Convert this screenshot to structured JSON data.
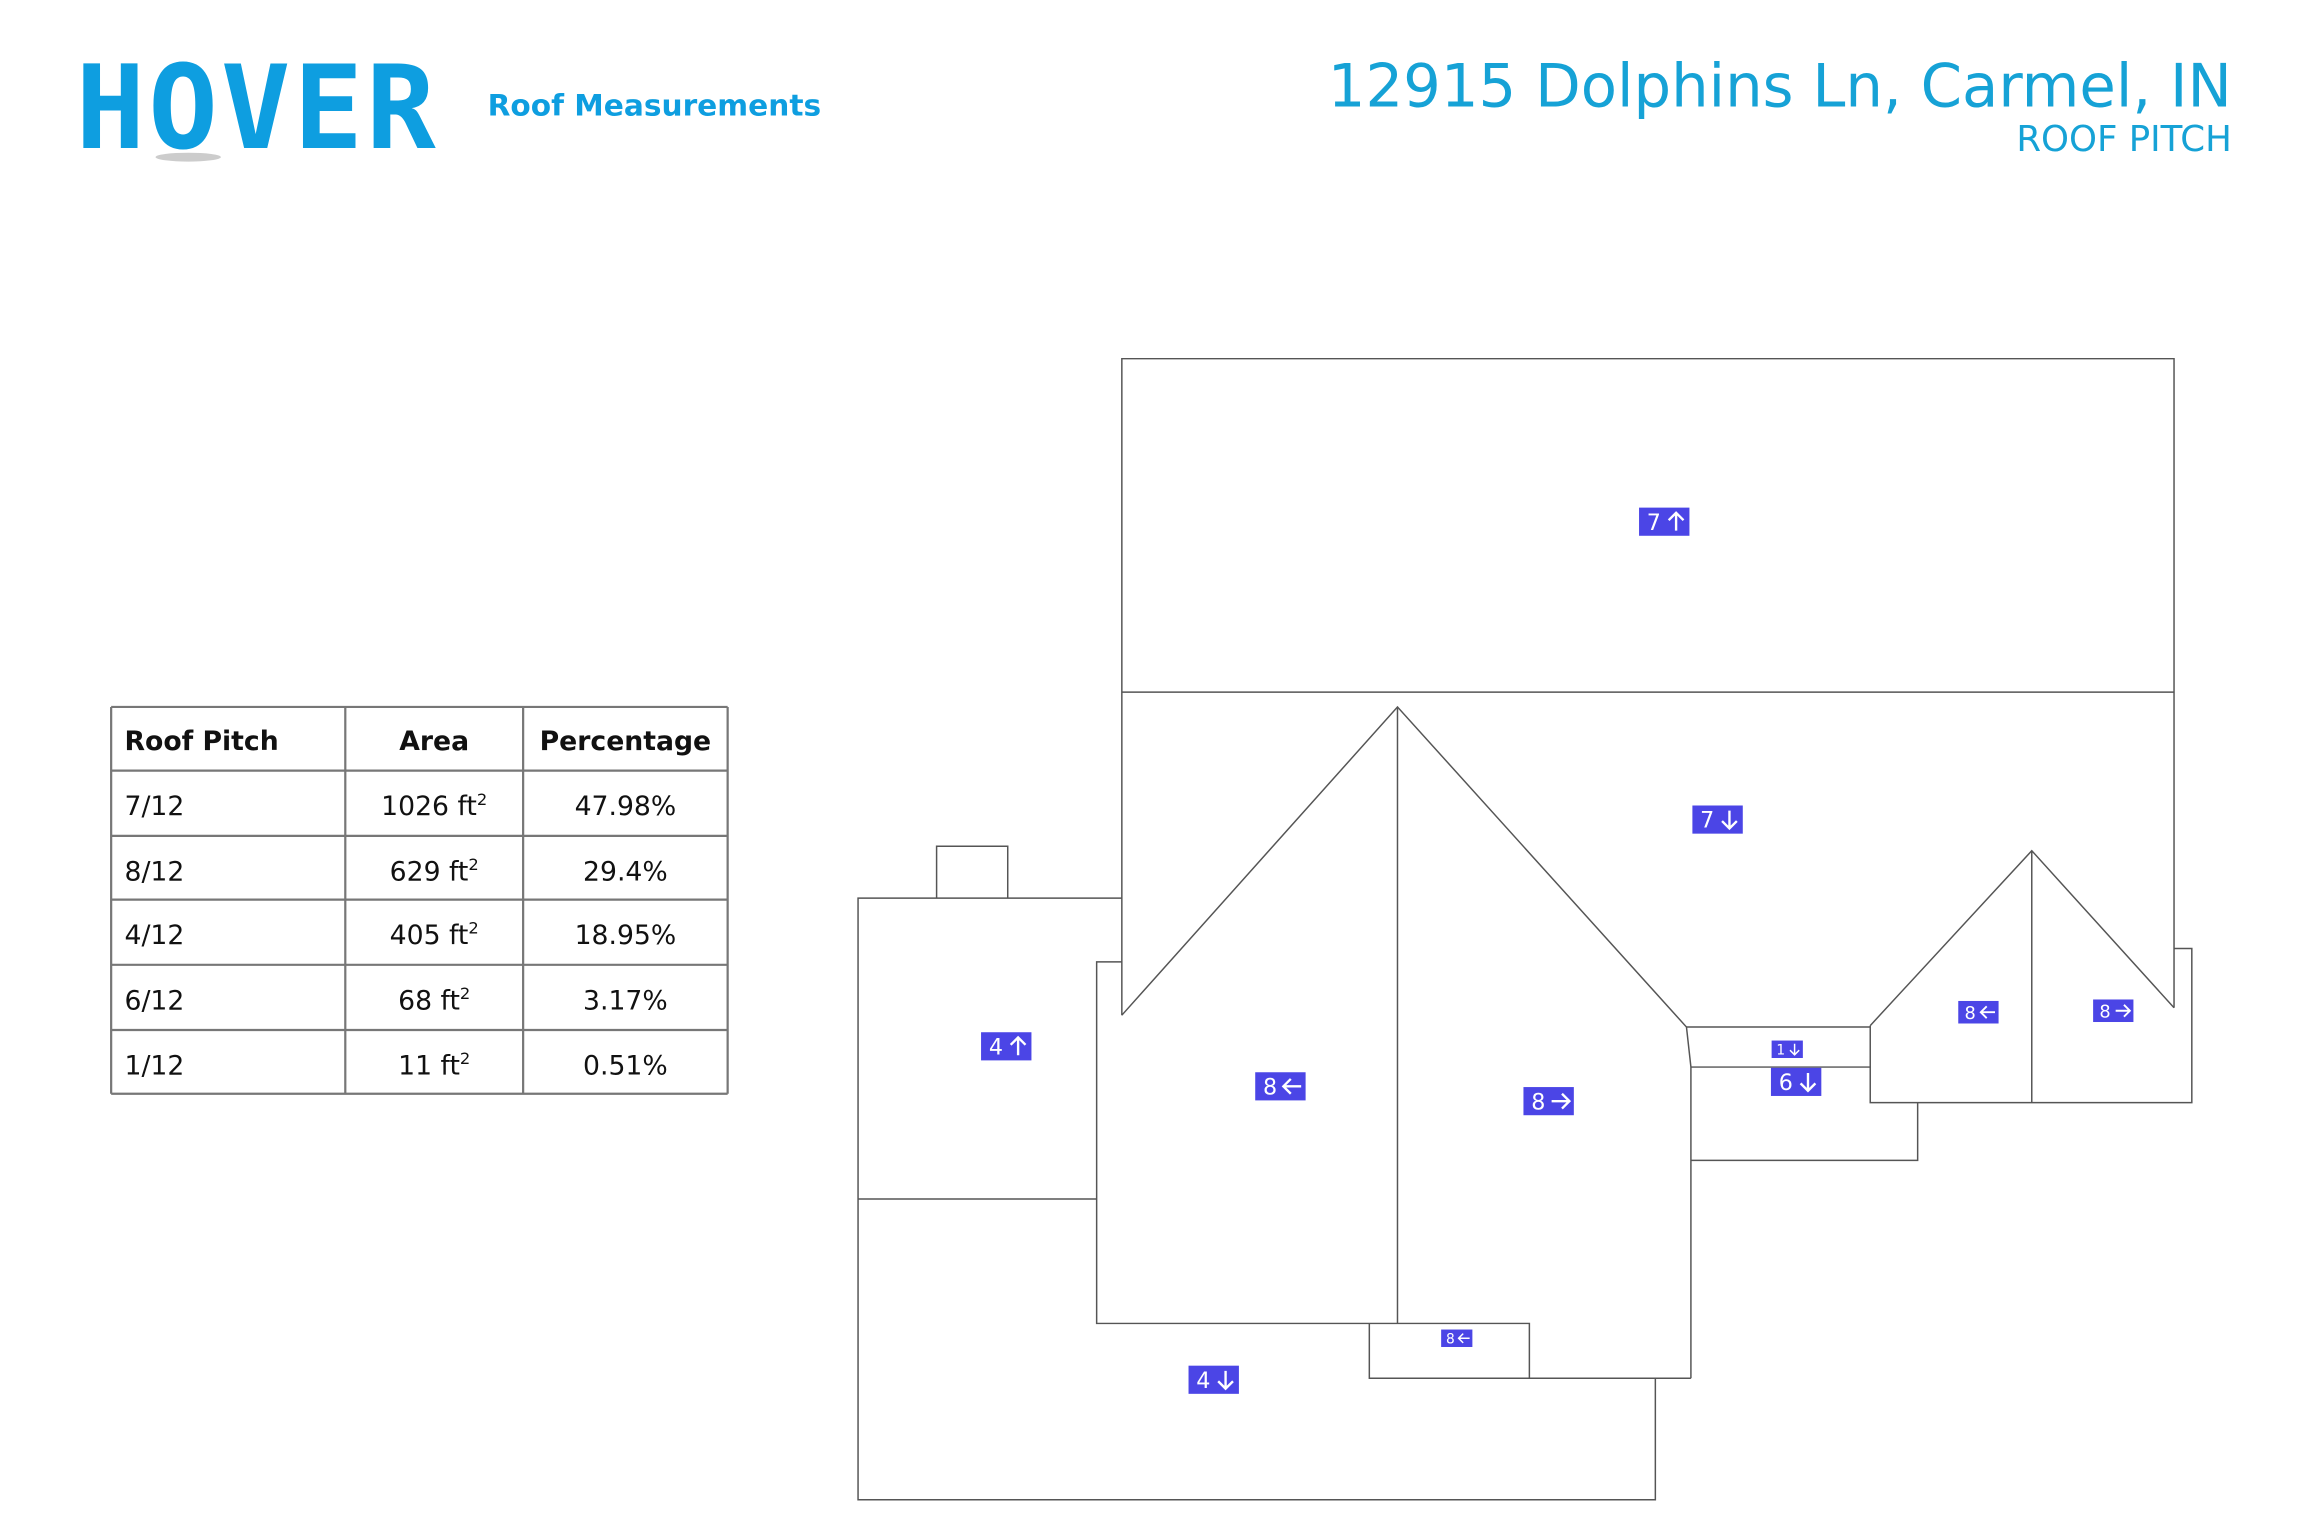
{
  "header": {
    "logo": "HOVER",
    "subtitle": "Roof Measurements",
    "address": "12915 Dolphins Ln, Carmel, IN",
    "page": "ROOF PITCH"
  },
  "table": {
    "columns": [
      "Roof Pitch",
      "Area",
      "Percentage"
    ],
    "rows": [
      [
        "7/12",
        {
          "area": "1026 ft",
          "exp": "2"
        },
        "47.98%"
      ],
      [
        "8/12",
        {
          "area": "629 ft",
          "exp": "2"
        },
        "29.4%"
      ],
      [
        "4/12",
        {
          "area": "405 ft",
          "exp": "2"
        },
        "18.95%"
      ],
      [
        "6/12",
        {
          "area": "68 ft",
          "exp": "2"
        },
        "3.17%"
      ],
      [
        "1/12",
        {
          "area": "11 ft",
          "exp": "2"
        },
        "0.51%"
      ]
    ]
  },
  "diagram": {
    "labels": [
      {
        "pitch": "7",
        "direction": "up"
      },
      {
        "pitch": "7",
        "direction": "down"
      },
      {
        "pitch": "4",
        "direction": "up"
      },
      {
        "pitch": "8",
        "direction": "left"
      },
      {
        "pitch": "8",
        "direction": "right"
      },
      {
        "pitch": "1",
        "direction": "down"
      },
      {
        "pitch": "6",
        "direction": "down"
      },
      {
        "pitch": "8",
        "direction": "left"
      },
      {
        "pitch": "8",
        "direction": "right"
      },
      {
        "pitch": "8",
        "direction": "left"
      },
      {
        "pitch": "4",
        "direction": "down"
      }
    ]
  }
}
